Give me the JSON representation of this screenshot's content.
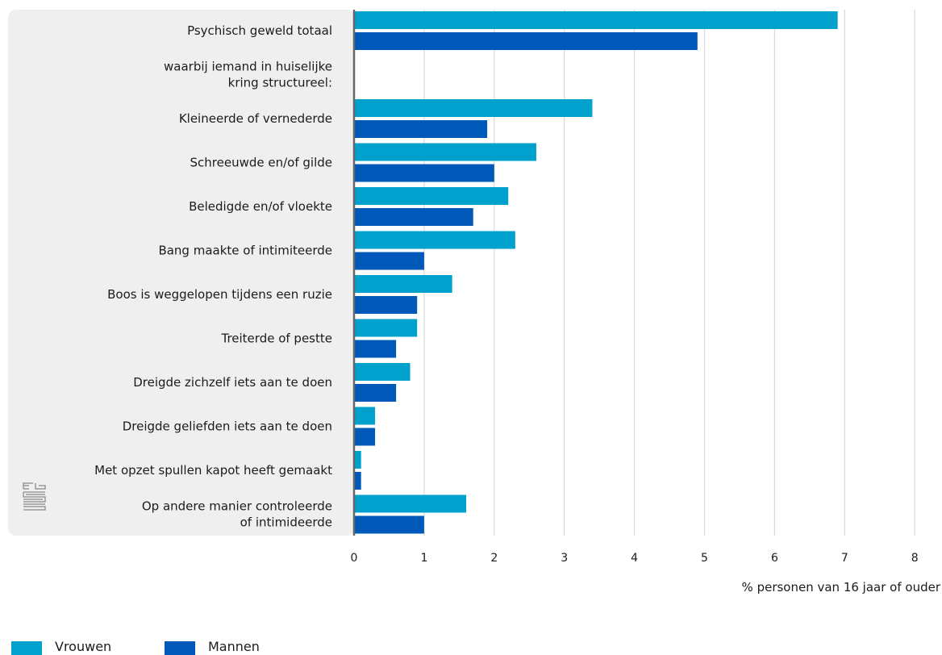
{
  "chart_data": {
    "type": "bar",
    "orientation": "horizontal",
    "categories": [
      "Psychisch geweld totaal",
      "waarbij iemand in huiselijke kring structureel:",
      "Kleineerde of vernederde",
      "Schreeuwde en/of gilde",
      "Beledigde en/of vloekte",
      "Bang maakte of intimiteerde",
      "Boos is weggelopen tijdens een ruzie",
      "Treiterde of pestte",
      "Dreigde zichzelf iets aan te doen",
      "Dreigde geliefden iets aan te doen",
      "Met opzet spullen kapot heeft gemaakt",
      "Op andere manier controleerde of intimideerde"
    ],
    "category_lines": [
      [
        "Psychisch geweld totaal"
      ],
      [
        "waarbij iemand in huiselijke",
        "kring structureel:"
      ],
      [
        "Kleineerde of vernederde"
      ],
      [
        "Schreeuwde en/of gilde"
      ],
      [
        "Beledigde en/of vloekte"
      ],
      [
        "Bang maakte of intimiteerde"
      ],
      [
        "Boos is weggelopen tijdens een ruzie"
      ],
      [
        "Treiterde of pestte"
      ],
      [
        "Dreigde zichzelf iets aan te doen"
      ],
      [
        "Dreigde geliefden iets aan te doen"
      ],
      [
        "Met opzet spullen kapot heeft gemaakt"
      ],
      [
        "Op andere manier controleerde",
        "of intimideerde"
      ]
    ],
    "series": [
      {
        "name": "Vrouwen",
        "color": "#00a1cd",
        "values": [
          6.9,
          null,
          3.4,
          2.6,
          2.2,
          2.3,
          1.4,
          0.9,
          0.8,
          0.3,
          0.1,
          1.6
        ]
      },
      {
        "name": "Mannen",
        "color": "#0058b8",
        "values": [
          4.9,
          null,
          1.9,
          2.0,
          1.7,
          1.0,
          0.9,
          0.6,
          0.6,
          0.3,
          0.1,
          1.0
        ]
      }
    ],
    "x_ticks": [
      "0",
      "1",
      "2",
      "3",
      "4",
      "5",
      "6",
      "7",
      "8"
    ],
    "xlim": [
      0,
      8
    ],
    "xlabel": "% personen van 16 jaar of ouder",
    "grid": true,
    "legend_position": "bottom-left",
    "colors": {
      "panel": "#efefef",
      "grid": "#d9d9d9",
      "axis": "#666666",
      "logo": "#999999"
    }
  }
}
